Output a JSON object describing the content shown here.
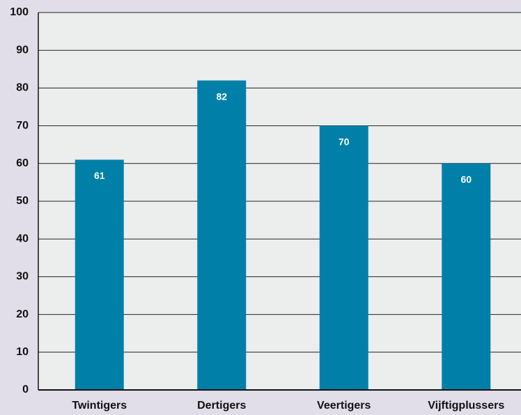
{
  "chart_data": {
    "type": "bar",
    "categories": [
      "Twintigers",
      "Dertigers",
      "Veertigers",
      "Vijftigplussers"
    ],
    "values": [
      61,
      82,
      70,
      60
    ],
    "color": "#0080a8",
    "ylim": [
      0,
      100
    ],
    "yticks": [
      0,
      10,
      20,
      30,
      40,
      50,
      60,
      70,
      80,
      90,
      100
    ],
    "grid": true
  }
}
